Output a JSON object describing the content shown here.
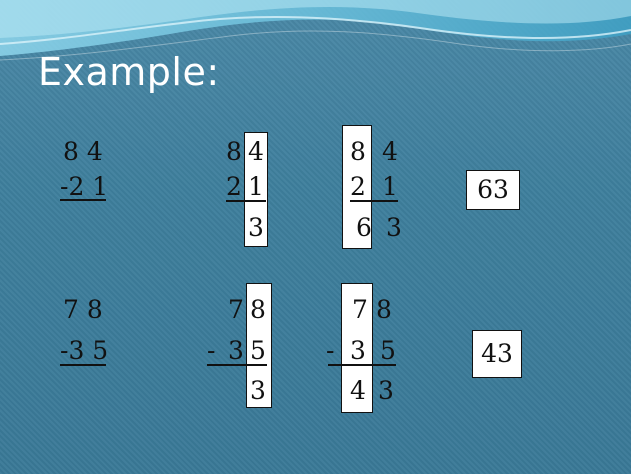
{
  "title": "Example:",
  "p1": {
    "c1": {
      "top": "8 4",
      "bot": "-2 1"
    },
    "c2": {
      "tl": "8",
      "tr": "4",
      "bl": "2",
      "br": "1",
      "res": "3"
    },
    "c3": {
      "tl": "8",
      "tr": "4",
      "bl": "2",
      "br": "1",
      "rl": "6",
      "rr": "3"
    },
    "answer": "63"
  },
  "p2": {
    "c1": {
      "top": "7 8",
      "bot": "-3 5"
    },
    "c2": {
      "tl": "7",
      "tr": "8",
      "minus": "-",
      "bl": "3",
      "br": "5",
      "res": "3"
    },
    "c3": {
      "tl": "7",
      "tr": "8",
      "minus": "-",
      "bl": "3",
      "br": "5",
      "rl": "4",
      "rr": "3"
    },
    "answer": "43"
  }
}
